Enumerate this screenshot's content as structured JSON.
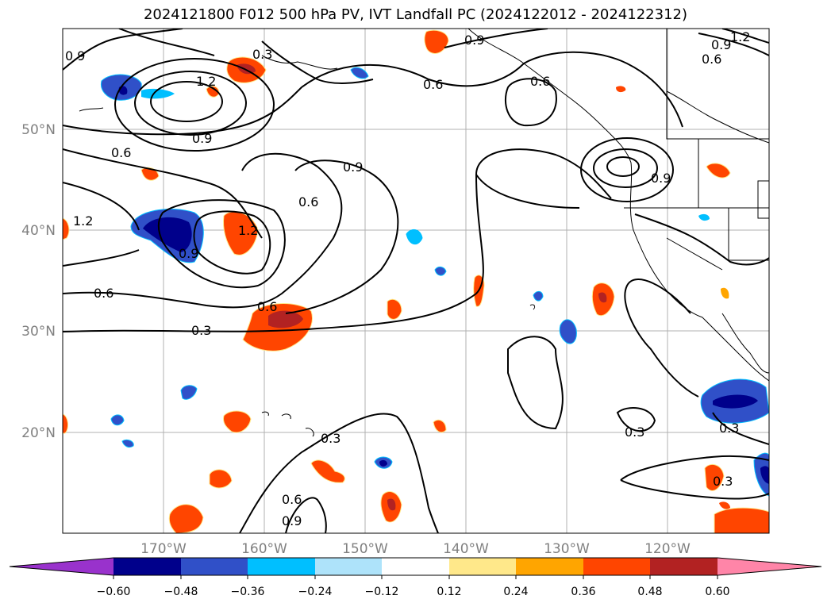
{
  "title": "2024121800 F012 500 hPa PV, IVT Landfall PC (2024122012 - 2024122312)",
  "lat_labels": [
    "50°N",
    "40°N",
    "30°N",
    "20°N"
  ],
  "lon_labels": [
    "170°W",
    "160°W",
    "150°W",
    "140°W",
    "130°W",
    "120°W"
  ],
  "contour_labels": [
    "0.9",
    "0.3",
    "1.2",
    "1.2",
    "0.9",
    "0.6",
    "0.9",
    "0.6",
    "0.6",
    "1.2",
    "0.9",
    "0.6",
    "0.9",
    "0.6",
    "1.2",
    "0.9",
    "0.6",
    "0.6",
    "0.3",
    "0.9",
    "0.3",
    "0.3",
    "0.6",
    "0.9",
    "0.3",
    "0.3"
  ],
  "colorbar": {
    "ticks": [
      "−0.60",
      "−0.48",
      "−0.36",
      "−0.24",
      "−0.12",
      "0.12",
      "0.24",
      "0.36",
      "0.48",
      "0.60"
    ],
    "colors": [
      "#9932cc",
      "#00008b",
      "#3050c8",
      "#00bfff",
      "#aee3fa",
      "#ffffff",
      "#ffe88a",
      "#ffa500",
      "#ff4500",
      "#b22222",
      "#ff85a8"
    ]
  },
  "map_colors": {
    "neg_dark": "#00008b",
    "neg_mid": "#3050c8",
    "neg_light": "#00bfff",
    "pos_light": "#ffa500",
    "pos_mid": "#ff4500",
    "pos_dark": "#b22222",
    "pos_pale": "#ffe88a"
  }
}
